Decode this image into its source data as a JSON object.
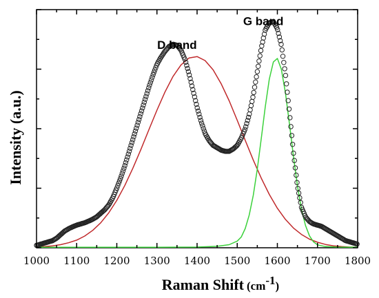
{
  "chart_data": {
    "type": "scatter",
    "xlabel_main": "Raman Shift",
    "xlabel_unit_open": "(cm",
    "xlabel_unit_sup": "-1",
    "xlabel_unit_close": ")",
    "ylabel": "Intensity (a.u.)",
    "xlim": [
      1000,
      1800
    ],
    "ylim": [
      0,
      1.0
    ],
    "x_ticks": [
      1000,
      1100,
      1200,
      1300,
      1400,
      1500,
      1600,
      1700,
      1800
    ],
    "x_tick_labels": [
      "1000",
      "1100",
      "1200",
      "1300",
      "1400",
      "1500",
      "1600",
      "1700",
      "1800"
    ],
    "y_tick_labels_visible": false,
    "annotations": [
      {
        "text": "D band",
        "x": 1350,
        "y": 0.835
      },
      {
        "text": "G band",
        "x": 1565,
        "y": 0.935
      }
    ],
    "series": [
      {
        "style": "open-circles",
        "color": "#222222",
        "x": [
          1000,
          1010,
          1020,
          1030,
          1040,
          1050,
          1060,
          1070,
          1080,
          1090,
          1100,
          1110,
          1120,
          1130,
          1140,
          1150,
          1160,
          1170,
          1180,
          1190,
          1200,
          1210,
          1220,
          1230,
          1240,
          1250,
          1260,
          1270,
          1280,
          1290,
          1300,
          1310,
          1320,
          1330,
          1340,
          1350,
          1360,
          1370,
          1380,
          1390,
          1400,
          1410,
          1420,
          1430,
          1440,
          1450,
          1460,
          1470,
          1480,
          1490,
          1500,
          1510,
          1520,
          1530,
          1540,
          1550,
          1560,
          1570,
          1580,
          1590,
          1600,
          1610,
          1620,
          1630,
          1640,
          1650,
          1660,
          1670,
          1680,
          1690,
          1700,
          1710,
          1720,
          1730,
          1740,
          1750,
          1760,
          1770,
          1780,
          1790,
          1800
        ],
        "values": [
          0.01,
          0.015,
          0.02,
          0.025,
          0.03,
          0.04,
          0.055,
          0.07,
          0.08,
          0.088,
          0.095,
          0.1,
          0.105,
          0.112,
          0.12,
          0.13,
          0.145,
          0.16,
          0.18,
          0.21,
          0.25,
          0.295,
          0.345,
          0.4,
          0.455,
          0.51,
          0.565,
          0.62,
          0.675,
          0.725,
          0.77,
          0.8,
          0.825,
          0.845,
          0.855,
          0.85,
          0.83,
          0.79,
          0.73,
          0.66,
          0.59,
          0.53,
          0.48,
          0.45,
          0.43,
          0.42,
          0.41,
          0.405,
          0.405,
          0.415,
          0.43,
          0.46,
          0.5,
          0.56,
          0.64,
          0.74,
          0.84,
          0.915,
          0.945,
          0.95,
          0.92,
          0.85,
          0.73,
          0.57,
          0.4,
          0.26,
          0.17,
          0.13,
          0.11,
          0.1,
          0.095,
          0.09,
          0.08,
          0.07,
          0.06,
          0.05,
          0.04,
          0.03,
          0.025,
          0.02,
          0.015
        ]
      },
      {
        "style": "line",
        "color": "#c0292b",
        "x": [
          1000,
          1020,
          1040,
          1060,
          1080,
          1100,
          1120,
          1140,
          1160,
          1180,
          1200,
          1220,
          1240,
          1260,
          1280,
          1300,
          1320,
          1340,
          1360,
          1380,
          1400,
          1420,
          1440,
          1460,
          1480,
          1500,
          1520,
          1540,
          1560,
          1580,
          1600,
          1620,
          1640,
          1660,
          1680,
          1700,
          1720,
          1740,
          1760,
          1780,
          1800
        ],
        "values": [
          0.003,
          0.005,
          0.008,
          0.013,
          0.021,
          0.032,
          0.049,
          0.073,
          0.105,
          0.147,
          0.199,
          0.262,
          0.334,
          0.413,
          0.496,
          0.578,
          0.654,
          0.719,
          0.768,
          0.797,
          0.803,
          0.786,
          0.747,
          0.689,
          0.617,
          0.535,
          0.451,
          0.368,
          0.292,
          0.224,
          0.166,
          0.119,
          0.083,
          0.056,
          0.036,
          0.023,
          0.014,
          0.008,
          0.005,
          0.003,
          0.002
        ]
      },
      {
        "style": "line",
        "color": "#3ad13a",
        "x": [
          1000,
          1100,
          1200,
          1300,
          1400,
          1450,
          1480,
          1500,
          1510,
          1520,
          1530,
          1540,
          1550,
          1560,
          1570,
          1580,
          1590,
          1600,
          1610,
          1620,
          1630,
          1640,
          1650,
          1660,
          1670,
          1680,
          1690,
          1700,
          1720,
          1750,
          1800
        ],
        "values": [
          0.002,
          0.002,
          0.002,
          0.002,
          0.003,
          0.006,
          0.013,
          0.028,
          0.045,
          0.081,
          0.138,
          0.221,
          0.331,
          0.46,
          0.593,
          0.708,
          0.78,
          0.795,
          0.749,
          0.651,
          0.521,
          0.384,
          0.261,
          0.163,
          0.094,
          0.05,
          0.025,
          0.012,
          0.005,
          0.003,
          0.002
        ]
      }
    ]
  }
}
